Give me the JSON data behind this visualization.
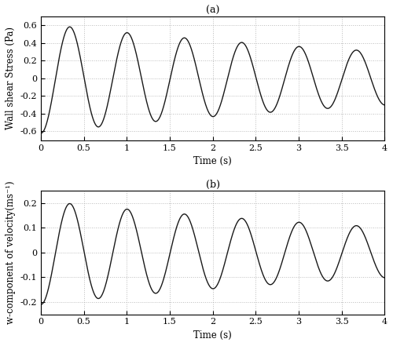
{
  "title_a": "(a)",
  "title_b": "(b)",
  "xlabel": "Time (s)",
  "ylabel_a": "Wall shear Stress (Pa)",
  "ylabel_b": "w-component of velocity(ms⁻¹)",
  "xlim": [
    0,
    4
  ],
  "ylim_a": [
    -0.7,
    0.7
  ],
  "ylim_b": [
    -0.25,
    0.25
  ],
  "xticks": [
    0,
    0.5,
    1,
    1.5,
    2,
    2.5,
    3,
    3.5,
    4
  ],
  "yticks_a": [
    -0.6,
    -0.4,
    -0.2,
    0,
    0.2,
    0.4,
    0.6
  ],
  "yticks_b": [
    -0.2,
    -0.1,
    0,
    0.1,
    0.2
  ],
  "line_color": "#1a1a1a",
  "background_color": "#ffffff",
  "grid_color": "#aaaaaa",
  "freq": 1.5,
  "decay_a": 0.18,
  "amplitude_a": 0.62,
  "phase_a": -1.62,
  "decay_b": 0.18,
  "amplitude_b": 0.21,
  "phase_b": -1.62,
  "figsize": [
    5.0,
    4.41
  ],
  "dpi": 100
}
